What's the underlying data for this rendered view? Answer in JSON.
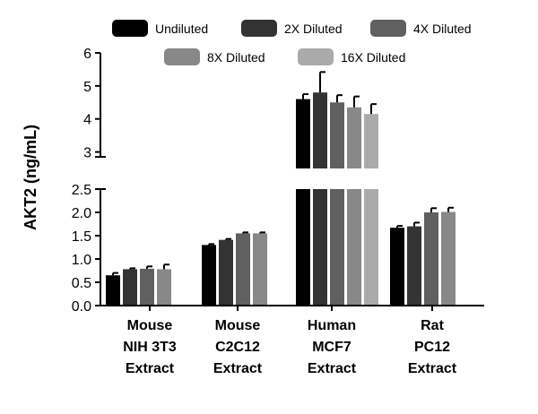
{
  "chart_data": {
    "type": "bar",
    "ylabel": "AKT2 (ng/mL)",
    "y_axis": {
      "broken": true,
      "lower_range": [
        0,
        2.5
      ],
      "upper_range": [
        2.5,
        6
      ],
      "lower_ticks": [
        "0.0",
        "0.5",
        "1.0",
        "1.5",
        "2.0",
        "2.5"
      ],
      "upper_ticks": [
        "3",
        "4",
        "5",
        "6"
      ]
    },
    "categories": [
      {
        "lines": [
          "Mouse",
          "NIH 3T3",
          "Extract"
        ]
      },
      {
        "lines": [
          "Mouse",
          "C2C12",
          "Extract"
        ]
      },
      {
        "lines": [
          "Human",
          "MCF7",
          "Extract"
        ]
      },
      {
        "lines": [
          "Rat",
          "PC12",
          "Extract"
        ]
      }
    ],
    "legend_position": "top",
    "series": [
      {
        "name": "Undiluted",
        "color": "#000000",
        "values": [
          0.65,
          1.3,
          4.6,
          1.67
        ],
        "errors": [
          0.05,
          0.02,
          0.15,
          0.04
        ]
      },
      {
        "name": "2X Diluted",
        "color": "#333333",
        "values": [
          0.78,
          1.41,
          4.8,
          1.7
        ],
        "errors": [
          0.02,
          0.02,
          0.62,
          0.08
        ]
      },
      {
        "name": "4X Diluted",
        "color": "#606060",
        "values": [
          0.79,
          1.55,
          4.5,
          2.0
        ],
        "errors": [
          0.05,
          0.02,
          0.22,
          0.09
        ]
      },
      {
        "name": "8X Diluted",
        "color": "#888888",
        "values": [
          0.78,
          1.55,
          4.35,
          2.01
        ],
        "errors": [
          0.1,
          0.02,
          0.33,
          0.09
        ]
      },
      {
        "name": "16X Diluted",
        "color": "#aaaaaa",
        "values": [
          null,
          null,
          4.15,
          null
        ],
        "errors": [
          null,
          null,
          0.3,
          null
        ]
      }
    ]
  }
}
